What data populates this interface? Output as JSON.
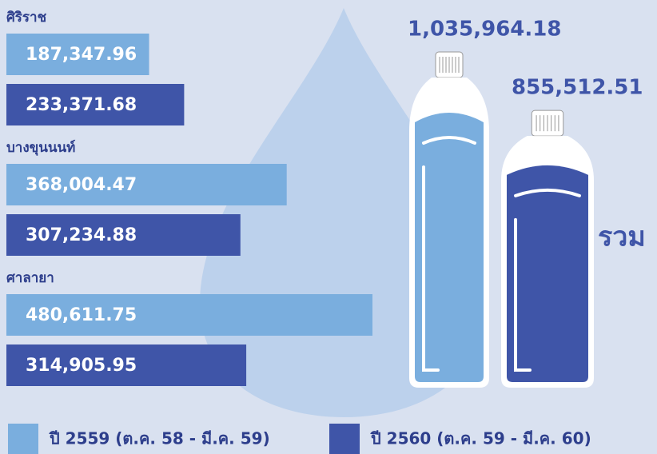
{
  "chart_data": {
    "type": "bar",
    "orientation": "horizontal",
    "background": "#d9e1f0",
    "categories": [
      "ศิริราช",
      "บางขุนนนท์",
      "ศาลายา"
    ],
    "series": [
      {
        "name": "ปี 2559 (ต.ค. 58 - มี.ค. 59)",
        "color": "#7aaede",
        "values": [
          187347.96,
          368004.47,
          480611.75
        ],
        "value_labels": [
          "187,347.96",
          "368,004.47",
          "480,611.75"
        ]
      },
      {
        "name": "ปี 2560 (ต.ค. 59 - มี.ค. 60)",
        "color": "#3f55a8",
        "values": [
          233371.68,
          307234.88,
          314905.95
        ],
        "value_labels": [
          "233,371.68",
          "307,234.88",
          "314,905.95"
        ]
      }
    ],
    "totals": {
      "label": "รวม",
      "values": [
        1035964.18,
        855512.51
      ],
      "value_labels": [
        "1,035,964.18",
        "855,512.51"
      ]
    }
  }
}
